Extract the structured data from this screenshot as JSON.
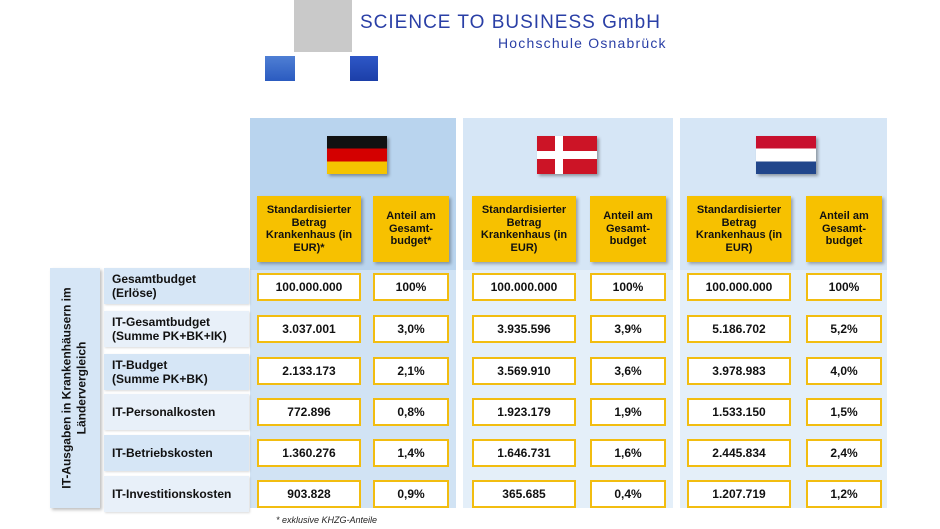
{
  "header": {
    "company": "SCIENCE TO BUSINESS GmbH",
    "school": "Hochschule Osnabrück"
  },
  "side_label": "IT-Ausgaben in Krankenhäusern im\nLändervergleich",
  "countries": [
    {
      "name": "Deutschland",
      "flag": "germany-flag",
      "col_amount": "Standardisierter Betrag Krankenhaus (in EUR)*",
      "col_share": "Anteil am Gesamt-budget*"
    },
    {
      "name": "Dänemark",
      "flag": "denmark-flag",
      "col_amount": "Standardisierter Betrag Krankenhaus (in EUR)",
      "col_share": "Anteil am Gesamt-budget"
    },
    {
      "name": "Niederlande",
      "flag": "netherlands-flag",
      "col_amount": "Standardisierter Betrag Krankenhaus (in EUR)",
      "col_share": "Anteil am Gesamt-budget"
    }
  ],
  "rows": [
    {
      "label": "Gesamtbudget\n(Erlöse)",
      "values": [
        [
          "100.000.000",
          "100%"
        ],
        [
          "100.000.000",
          "100%"
        ],
        [
          "100.000.000",
          "100%"
        ]
      ]
    },
    {
      "label": "IT-Gesamtbudget\n(Summe PK+BK+IK)",
      "values": [
        [
          "3.037.001",
          "3,0%"
        ],
        [
          "3.935.596",
          "3,9%"
        ],
        [
          "5.186.702",
          "5,2%"
        ]
      ]
    },
    {
      "label": "IT-Budget\n(Summe PK+BK)",
      "values": [
        [
          "2.133.173",
          "2,1%"
        ],
        [
          "3.569.910",
          "3,6%"
        ],
        [
          "3.978.983",
          "4,0%"
        ]
      ]
    },
    {
      "label": "IT-Personalkosten",
      "values": [
        [
          "772.896",
          "0,8%"
        ],
        [
          "1.923.179",
          "1,9%"
        ],
        [
          "1.533.150",
          "1,5%"
        ]
      ]
    },
    {
      "label": "IT-Betriebskosten",
      "values": [
        [
          "1.360.276",
          "1,4%"
        ],
        [
          "1.646.731",
          "1,6%"
        ],
        [
          "2.445.834",
          "2,4%"
        ]
      ]
    },
    {
      "label": "IT-Investitionskosten",
      "values": [
        [
          "903.828",
          "0,9%"
        ],
        [
          "365.685",
          "0,4%"
        ],
        [
          "1.207.719",
          "1,2%"
        ]
      ]
    }
  ],
  "footnote": "* exklusive KHZG-Anteile",
  "colors": {
    "brand_blue": "#2a3fa6",
    "header_yellow": "#f7c100",
    "panel_blue": "#d6e6f6"
  }
}
